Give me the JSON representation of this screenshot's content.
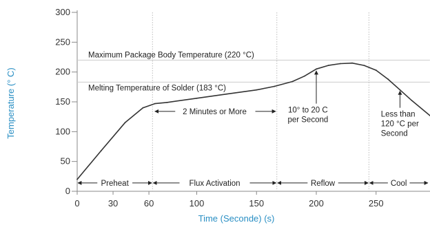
{
  "chart_data": {
    "type": "line",
    "title": "",
    "xlabel": "Time (Seconde) (s)",
    "ylabel": "Temperature (° C)",
    "xlim": [
      0,
      295
    ],
    "ylim": [
      0,
      300
    ],
    "x_ticks": [
      0,
      30,
      60,
      100,
      150,
      200,
      250
    ],
    "y_ticks": [
      0,
      50,
      100,
      150,
      200,
      250,
      300
    ],
    "colors": {
      "axis_title": "#2a8fc4",
      "curve": "#333333",
      "reference": "#cccccc",
      "text": "#222222"
    },
    "series": [
      {
        "x": [
          0,
          20,
          40,
          55,
          65,
          75,
          100,
          125,
          150,
          165,
          180,
          190,
          200,
          210,
          220,
          230,
          240,
          250,
          260,
          270,
          280,
          295
        ],
        "y": [
          20,
          68,
          115,
          140,
          147,
          149,
          156,
          163,
          170,
          176,
          184,
          193,
          205,
          211,
          214,
          215,
          211,
          203,
          188,
          170,
          152,
          127
        ]
      }
    ],
    "reference_lines": [
      {
        "y": 220,
        "label": "Maximum Package Body Temperature (220 °C)"
      },
      {
        "y": 183,
        "label": "Melting Temperature of Solder (183 °C)"
      }
    ],
    "phase_boundaries": [
      63,
      167,
      244
    ],
    "phases": [
      {
        "label": "Preheat",
        "start": 0,
        "end": 63
      },
      {
        "label": "Flux Activation",
        "start": 63,
        "end": 167
      },
      {
        "label": "Reflow",
        "start": 167,
        "end": 244
      },
      {
        "label": "Cool",
        "start": 244,
        "end": 295
      }
    ],
    "annotations": {
      "duration": "2 Minutes or More",
      "heating_rate": [
        "10° to 20 C",
        "per Second"
      ],
      "cooling_rate": [
        "Less than",
        "120 °C per",
        "Second"
      ]
    }
  }
}
